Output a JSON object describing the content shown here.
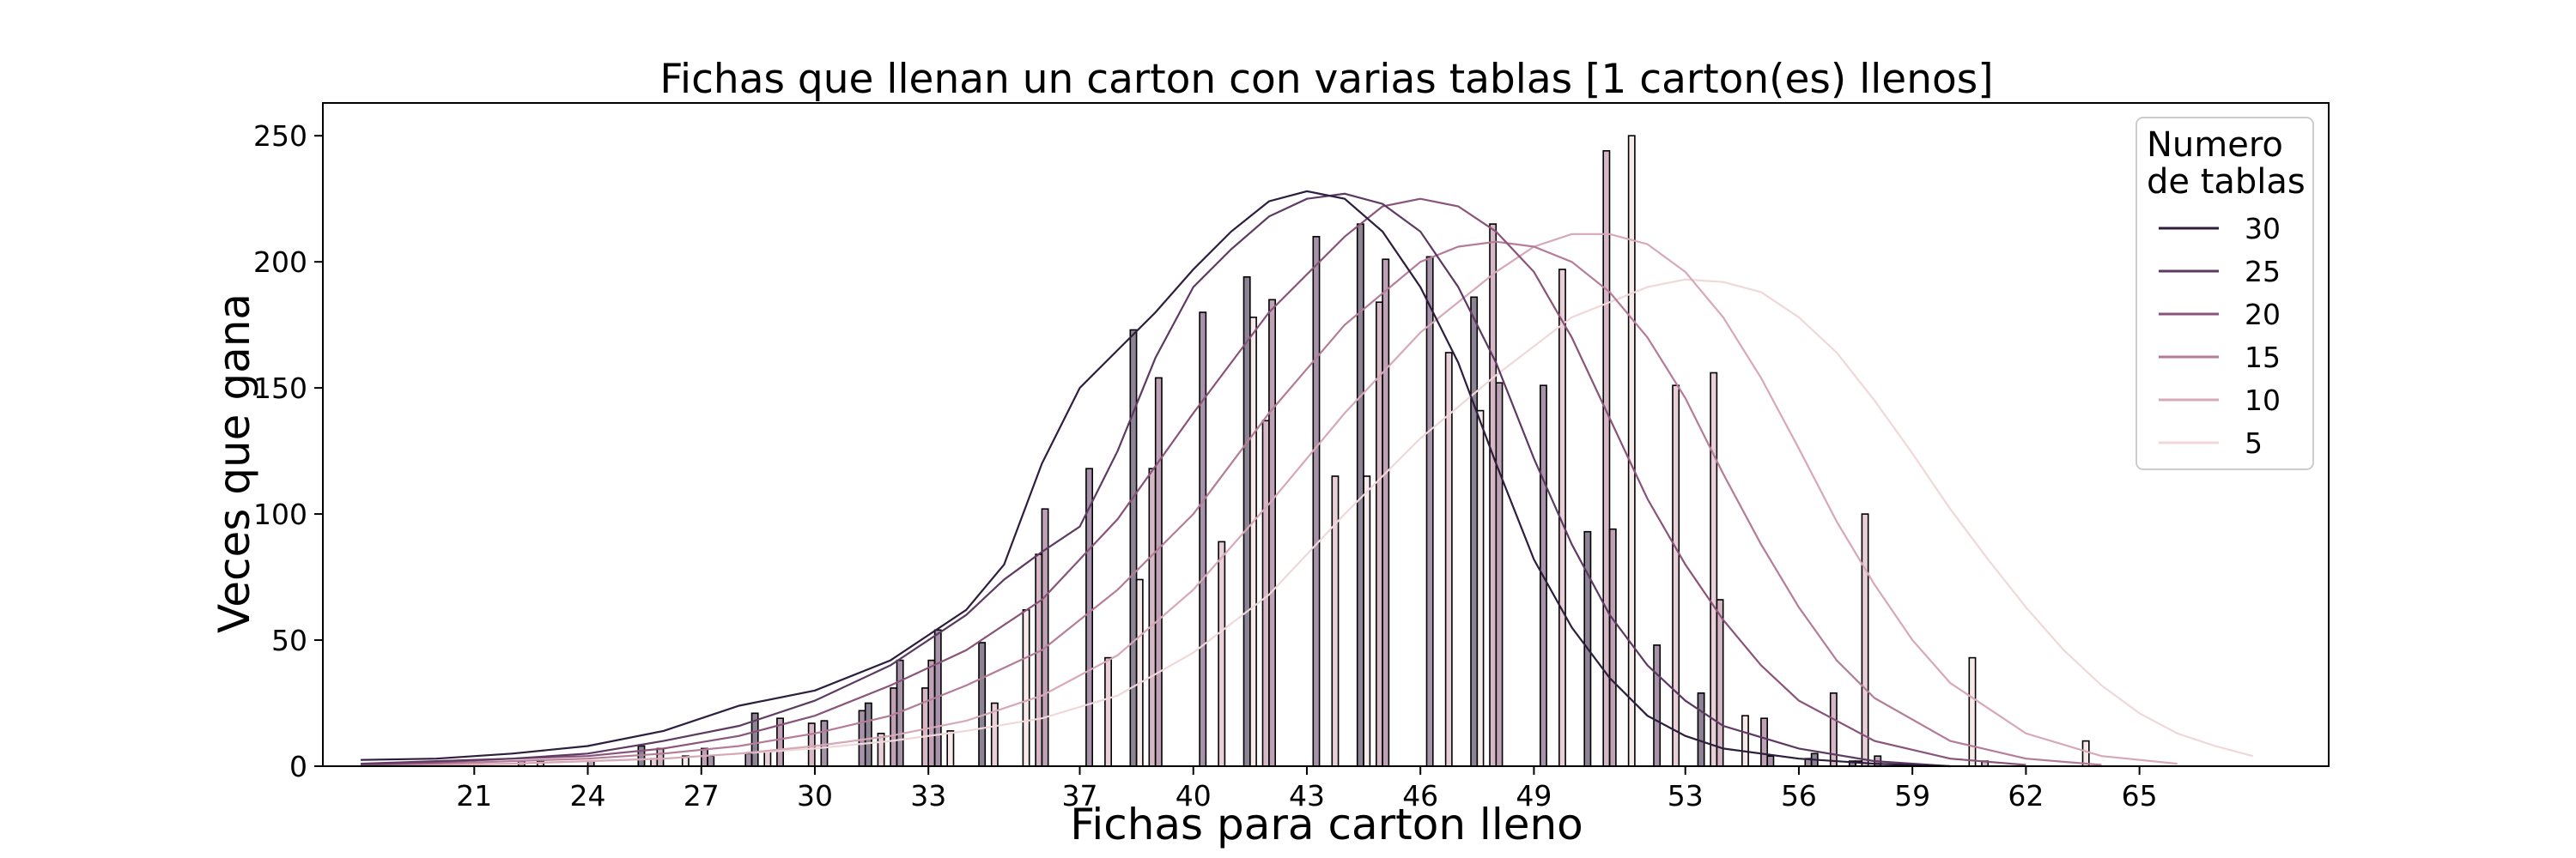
{
  "chart_data": {
    "type": "bar",
    "title": "Fichas que llenan un carton con varias tablas [1 carton(es) llenos]",
    "xlabel": "Fichas para carton lleno",
    "ylabel": "Veces que gana",
    "xlim": [
      17,
      70
    ],
    "ylim": [
      0,
      263
    ],
    "x_ticks": [
      21,
      24,
      27,
      30,
      33,
      37,
      40,
      43,
      46,
      49,
      53,
      56,
      59,
      62,
      65
    ],
    "y_ticks": [
      0,
      50,
      100,
      150,
      200,
      250
    ],
    "legend": {
      "title_lines": [
        "Numero",
        "de tablas"
      ],
      "placement": "top-right"
    },
    "grid": false,
    "series": [
      {
        "name": "30",
        "color": "#2d1e3e",
        "bars": [
          [
            25,
            8
          ],
          [
            28,
            21
          ],
          [
            31,
            25
          ],
          [
            34,
            49
          ],
          [
            38,
            173
          ],
          [
            41,
            194
          ],
          [
            44,
            215
          ],
          [
            47,
            186
          ],
          [
            50,
            93
          ],
          [
            53,
            29
          ],
          [
            56,
            5
          ],
          [
            57,
            2
          ]
        ],
        "kde": [
          [
            18,
            2.5
          ],
          [
            20,
            3
          ],
          [
            22,
            5
          ],
          [
            24,
            8
          ],
          [
            26,
            14
          ],
          [
            28,
            24
          ],
          [
            30,
            30
          ],
          [
            32,
            42
          ],
          [
            34,
            62
          ],
          [
            35,
            80
          ],
          [
            36,
            120
          ],
          [
            37,
            150
          ],
          [
            38,
            165
          ],
          [
            39,
            180
          ],
          [
            40,
            197
          ],
          [
            41,
            212
          ],
          [
            42,
            224
          ],
          [
            43,
            228
          ],
          [
            44,
            225
          ],
          [
            45,
            212
          ],
          [
            46,
            190
          ],
          [
            47,
            160
          ],
          [
            48,
            120
          ],
          [
            49,
            82
          ],
          [
            50,
            55
          ],
          [
            51,
            35
          ],
          [
            52,
            20
          ],
          [
            53,
            12
          ],
          [
            54,
            7
          ],
          [
            56,
            3
          ],
          [
            58,
            1
          ],
          [
            60,
            0
          ]
        ]
      },
      {
        "name": "25",
        "color": "#5e3a63",
        "bars": [
          [
            22,
            2
          ],
          [
            27,
            4
          ],
          [
            28,
            5
          ],
          [
            30,
            18
          ],
          [
            31,
            22
          ],
          [
            32,
            42
          ],
          [
            33,
            54
          ],
          [
            37,
            118
          ],
          [
            40,
            180
          ],
          [
            43,
            210
          ],
          [
            46,
            202
          ],
          [
            49,
            151
          ],
          [
            52,
            48
          ],
          [
            55,
            4
          ],
          [
            56,
            3
          ]
        ],
        "kde": [
          [
            18,
            1
          ],
          [
            20,
            2
          ],
          [
            22,
            3
          ],
          [
            24,
            5
          ],
          [
            26,
            10
          ],
          [
            28,
            16
          ],
          [
            30,
            26
          ],
          [
            32,
            40
          ],
          [
            34,
            60
          ],
          [
            35,
            74
          ],
          [
            36,
            85
          ],
          [
            37,
            95
          ],
          [
            38,
            125
          ],
          [
            39,
            162
          ],
          [
            40,
            190
          ],
          [
            41,
            205
          ],
          [
            42,
            218
          ],
          [
            43,
            225
          ],
          [
            44,
            227
          ],
          [
            45,
            223
          ],
          [
            46,
            212
          ],
          [
            47,
            190
          ],
          [
            48,
            160
          ],
          [
            49,
            122
          ],
          [
            50,
            88
          ],
          [
            51,
            60
          ],
          [
            52,
            40
          ],
          [
            53,
            26
          ],
          [
            54,
            16
          ],
          [
            56,
            7
          ],
          [
            58,
            2
          ],
          [
            60,
            0
          ]
        ]
      },
      {
        "name": "20",
        "color": "#8a547a",
        "bars": [
          [
            24,
            2
          ],
          [
            27,
            7
          ],
          [
            29,
            19
          ],
          [
            32,
            31
          ],
          [
            33,
            42
          ],
          [
            36,
            102
          ],
          [
            39,
            154
          ],
          [
            42,
            185
          ],
          [
            45,
            201
          ],
          [
            48,
            152
          ],
          [
            51,
            94
          ],
          [
            55,
            19
          ],
          [
            58,
            4
          ]
        ],
        "kde": [
          [
            18,
            0.5
          ],
          [
            20,
            1.5
          ],
          [
            22,
            3
          ],
          [
            24,
            4
          ],
          [
            26,
            7
          ],
          [
            28,
            12
          ],
          [
            30,
            20
          ],
          [
            32,
            32
          ],
          [
            34,
            46
          ],
          [
            36,
            66
          ],
          [
            38,
            98
          ],
          [
            40,
            140
          ],
          [
            42,
            180
          ],
          [
            44,
            210
          ],
          [
            45,
            222
          ],
          [
            46,
            225
          ],
          [
            47,
            222
          ],
          [
            48,
            212
          ],
          [
            49,
            196
          ],
          [
            50,
            170
          ],
          [
            51,
            138
          ],
          [
            52,
            106
          ],
          [
            53,
            80
          ],
          [
            54,
            58
          ],
          [
            55,
            40
          ],
          [
            56,
            26
          ],
          [
            58,
            10
          ],
          [
            60,
            3
          ],
          [
            62,
            0.5
          ]
        ]
      },
      {
        "name": "15",
        "color": "#b57c98",
        "bars": [
          [
            26,
            7
          ],
          [
            30,
            17
          ],
          [
            33,
            31
          ],
          [
            36,
            84
          ],
          [
            39,
            118
          ],
          [
            42,
            137
          ],
          [
            45,
            184
          ],
          [
            48,
            215
          ],
          [
            51,
            244
          ],
          [
            54,
            66
          ],
          [
            57,
            29
          ],
          [
            61,
            2
          ]
        ],
        "kde": [
          [
            18,
            0.5
          ],
          [
            20,
            1
          ],
          [
            22,
            2
          ],
          [
            24,
            3
          ],
          [
            26,
            5
          ],
          [
            28,
            8
          ],
          [
            30,
            13
          ],
          [
            32,
            20
          ],
          [
            34,
            32
          ],
          [
            36,
            46
          ],
          [
            38,
            70
          ],
          [
            40,
            100
          ],
          [
            42,
            140
          ],
          [
            44,
            175
          ],
          [
            46,
            200
          ],
          [
            47,
            206
          ],
          [
            48,
            208
          ],
          [
            49,
            206
          ],
          [
            50,
            200
          ],
          [
            51,
            188
          ],
          [
            52,
            170
          ],
          [
            53,
            146
          ],
          [
            54,
            116
          ],
          [
            55,
            88
          ],
          [
            56,
            63
          ],
          [
            57,
            42
          ],
          [
            58,
            27
          ],
          [
            60,
            10
          ],
          [
            62,
            3
          ],
          [
            64,
            0.5
          ]
        ]
      },
      {
        "name": "10",
        "color": "#d7a8b6",
        "bars": [
          [
            23,
            2
          ],
          [
            26,
            3
          ],
          [
            29,
            6
          ],
          [
            32,
            13
          ],
          [
            35,
            25
          ],
          [
            38,
            43
          ],
          [
            41,
            89
          ],
          [
            44,
            115
          ],
          [
            47,
            164
          ],
          [
            50,
            197
          ],
          [
            53,
            151
          ],
          [
            54,
            156
          ],
          [
            58,
            100
          ]
        ],
        "kde": [
          [
            18,
            0
          ],
          [
            20,
            0.5
          ],
          [
            22,
            1
          ],
          [
            24,
            2
          ],
          [
            26,
            3
          ],
          [
            28,
            5
          ],
          [
            30,
            8
          ],
          [
            32,
            12
          ],
          [
            34,
            18
          ],
          [
            36,
            28
          ],
          [
            38,
            44
          ],
          [
            40,
            70
          ],
          [
            42,
            104
          ],
          [
            44,
            140
          ],
          [
            46,
            172
          ],
          [
            48,
            196
          ],
          [
            49,
            206
          ],
          [
            50,
            211
          ],
          [
            51,
            211
          ],
          [
            52,
            207
          ],
          [
            53,
            196
          ],
          [
            54,
            178
          ],
          [
            55,
            154
          ],
          [
            56,
            126
          ],
          [
            57,
            97
          ],
          [
            58,
            72
          ],
          [
            59,
            50
          ],
          [
            60,
            33
          ],
          [
            62,
            13
          ],
          [
            64,
            4
          ],
          [
            66,
            1
          ]
        ]
      },
      {
        "name": "5",
        "color": "#f0d8d9",
        "bars": [
          [
            27,
            4
          ],
          [
            34,
            14
          ],
          [
            36,
            62
          ],
          [
            39,
            74
          ],
          [
            42,
            178
          ],
          [
            45,
            115
          ],
          [
            48,
            141
          ],
          [
            52,
            250
          ],
          [
            55,
            20
          ],
          [
            58,
            2
          ],
          [
            61,
            43
          ],
          [
            64,
            10
          ]
        ],
        "kde": [
          [
            18,
            0
          ],
          [
            20,
            0.5
          ],
          [
            22,
            1
          ],
          [
            24,
            2
          ],
          [
            26,
            3
          ],
          [
            28,
            5
          ],
          [
            30,
            7
          ],
          [
            32,
            10
          ],
          [
            34,
            14
          ],
          [
            36,
            19
          ],
          [
            38,
            28
          ],
          [
            40,
            45
          ],
          [
            42,
            68
          ],
          [
            44,
            100
          ],
          [
            46,
            130
          ],
          [
            48,
            155
          ],
          [
            50,
            178
          ],
          [
            52,
            190
          ],
          [
            53,
            193
          ],
          [
            54,
            192
          ],
          [
            55,
            188
          ],
          [
            56,
            178
          ],
          [
            57,
            164
          ],
          [
            58,
            145
          ],
          [
            59,
            124
          ],
          [
            60,
            102
          ],
          [
            61,
            82
          ],
          [
            62,
            63
          ],
          [
            63,
            46
          ],
          [
            64,
            32
          ],
          [
            65,
            21
          ],
          [
            66,
            13
          ],
          [
            67,
            8
          ],
          [
            68,
            4
          ]
        ]
      }
    ]
  }
}
